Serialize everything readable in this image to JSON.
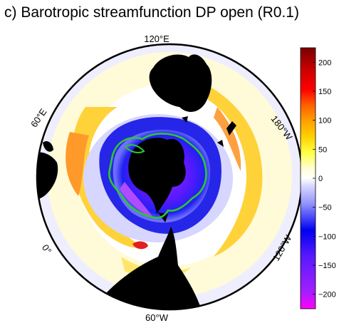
{
  "title": "c) Barotropic streamfunction DP open (R0.1)",
  "chart_data": {
    "type": "heatmap",
    "projection": "south-polar-stereographic",
    "title": "c) Barotropic streamfunction DP open (R0.1)",
    "longitude_labels": [
      {
        "label": "120°E",
        "lon": 120
      },
      {
        "label": "180°W",
        "lon": 180
      },
      {
        "label": "120°W",
        "lon": -120
      },
      {
        "label": "60°W",
        "lon": -60
      },
      {
        "label": "0°",
        "lon": 0
      },
      {
        "label": "60°E",
        "lon": 60
      }
    ],
    "colorbar": {
      "range": [
        -225,
        225
      ],
      "ticks": [
        200,
        150,
        100,
        50,
        0,
        -50,
        -100,
        -150,
        -200
      ],
      "tick_labels": [
        "200",
        "150",
        "100",
        "50",
        "0",
        "−50",
        "−100",
        "−150",
        "−200"
      ],
      "colors": [
        "#ff00ff",
        "#9f1fff",
        "#5a19ff",
        "#0000f0",
        "#8f8fff",
        "#d6d6ff",
        "#ffffff",
        "#ffffd0",
        "#ffff40",
        "#ffd000",
        "#ffa000",
        "#ff6000",
        "#ff0000",
        "#c80000",
        "#780000"
      ]
    },
    "features": {
      "gyre_contour_color": "#2ec82e",
      "land_color": "#000000",
      "land_masses": [
        "Antarctica",
        "Australia",
        "Africa",
        "South America",
        "New Zealand",
        "Madagascar"
      ]
    }
  }
}
